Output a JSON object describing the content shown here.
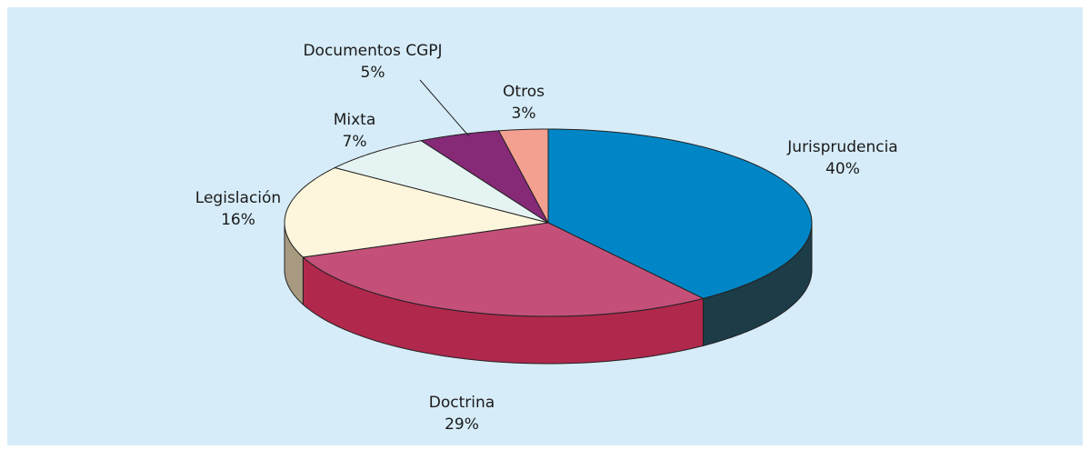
{
  "chart_data": {
    "type": "pie",
    "categories": [
      "Jurisprudencia",
      "Doctrina",
      "Legislación",
      "Mixta",
      "Documentos CGPJ",
      "Otros"
    ],
    "values": [
      40,
      29,
      16,
      7,
      5,
      3
    ],
    "value_labels": [
      "40%",
      "29%",
      "16%",
      "7%",
      "5%",
      "3%"
    ],
    "colors": [
      "#0086c6",
      "#c4507a",
      "#fdf6dc",
      "#e6f3f3",
      "#862a78",
      "#f4a090"
    ],
    "side_colors": [
      "#1c3c48",
      "#b0284c",
      "#a89a80",
      "#b8c4c4",
      "#5a1a50",
      "#c07064"
    ]
  }
}
